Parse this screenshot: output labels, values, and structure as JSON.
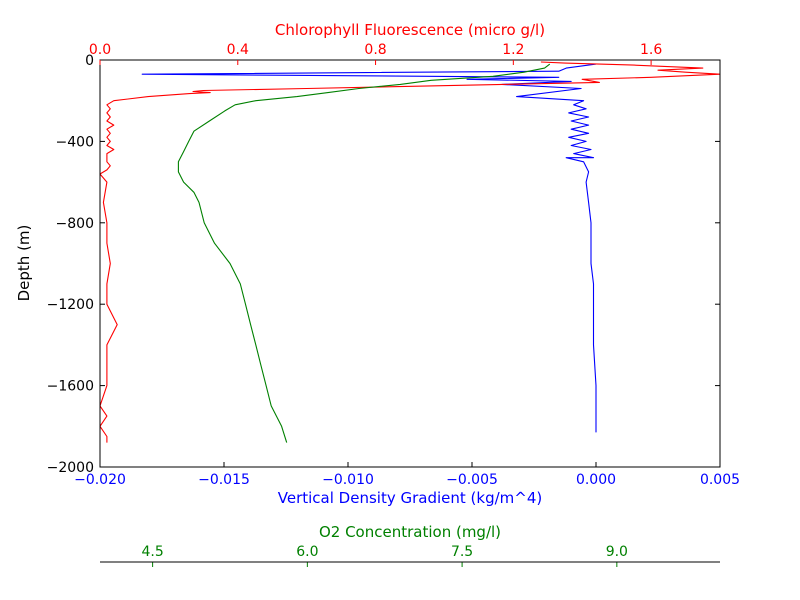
{
  "chart_data": {
    "type": "line",
    "grid": false,
    "ylabel": "Depth (m)",
    "y_axis": {
      "ylim": [
        -2000,
        0
      ],
      "ticks": [
        0,
        -400,
        -800,
        -1200,
        -1600,
        -2000
      ],
      "tick_labels": [
        "0",
        "−400",
        "−800",
        "−1200",
        "−1600",
        "−2000"
      ]
    },
    "axes": {
      "density": {
        "label": "Vertical Density Gradient (kg/m^4)",
        "position": "bottom",
        "color": "#0000ff",
        "xlim": [
          -0.02,
          0.005
        ],
        "ticks": [
          -0.02,
          -0.015,
          -0.01,
          -0.005,
          0.0,
          0.005
        ],
        "tick_labels": [
          "−0.020",
          "−0.015",
          "−0.010",
          "−0.005",
          "0.000",
          "0.005"
        ]
      },
      "chlorophyll": {
        "label": "Chlorophyll Fluorescence (micro g/l)",
        "position": "top",
        "color": "#ff0000",
        "xlim": [
          0.0,
          1.8
        ],
        "ticks": [
          0.0,
          0.4,
          0.8,
          1.2,
          1.6
        ],
        "tick_labels": [
          "0.0",
          "0.4",
          "0.8",
          "1.2",
          "1.6"
        ]
      },
      "o2": {
        "label": "O2 Concentration (mg/l)",
        "position": "detached-bottom",
        "color": "#008000",
        "xlim": [
          3.99,
          10.0
        ],
        "ticks": [
          4.5,
          6.0,
          7.5,
          9.0
        ],
        "tick_labels": [
          "4.5",
          "6.0",
          "7.5",
          "9.0"
        ]
      }
    },
    "series": [
      {
        "axis": "density",
        "color": "#0000ff",
        "x": [
          0.0,
          -0.0012,
          -0.0015,
          -0.0183,
          -0.0015,
          -0.0052,
          -0.001,
          -0.0038,
          -0.0006,
          -0.0032,
          -0.0005,
          -0.0009,
          -0.0004,
          -0.0011,
          -0.0003,
          -0.001,
          -0.0003,
          -0.001,
          -0.0003,
          -0.0011,
          -0.0004,
          -0.001,
          -0.0002,
          -0.0009,
          -0.0001,
          -0.0012,
          -0.0005,
          -0.0003,
          -0.0004,
          -0.0003,
          -0.0002,
          -0.0002,
          -0.0001,
          -0.0001,
          -0.0001,
          0.0,
          0.0,
          0.0,
          0.0
        ],
        "y": [
          -20,
          -40,
          -55,
          -70,
          -85,
          -95,
          -105,
          -120,
          -140,
          -180,
          -200,
          -220,
          -240,
          -260,
          -280,
          -300,
          -320,
          -340,
          -360,
          -380,
          -400,
          -420,
          -440,
          -460,
          -480,
          -480,
          -500,
          -550,
          -600,
          -700,
          -800,
          -1000,
          -1100,
          -1200,
          -1400,
          -1600,
          -1700,
          -1800,
          -1830
        ]
      },
      {
        "axis": "chlorophyll",
        "color": "#ff0000",
        "x": [
          1.28,
          1.35,
          1.55,
          1.75,
          1.62,
          1.7,
          1.8,
          1.6,
          1.4,
          1.45,
          0.6,
          0.3,
          0.27,
          0.32,
          0.26,
          0.14,
          0.04,
          0.02,
          0.03,
          0.02,
          0.03,
          0.02,
          0.04,
          0.02,
          0.03,
          0.02,
          0.03,
          0.02,
          0.04,
          0.02,
          0.02,
          0.02,
          0.03,
          0.02,
          0.0,
          0.02,
          0.01,
          0.02,
          0.02,
          0.03,
          0.02,
          0.02,
          0.05,
          0.02,
          0.02,
          0.02,
          0.0,
          0.02,
          0.0,
          0.02,
          0.02
        ],
        "y": [
          -10,
          -15,
          -25,
          -40,
          -50,
          -60,
          -70,
          -85,
          -95,
          -110,
          -140,
          -150,
          -155,
          -160,
          -165,
          -180,
          -200,
          -220,
          -240,
          -260,
          -280,
          -300,
          -320,
          -340,
          -360,
          -380,
          -400,
          -420,
          -440,
          -460,
          -480,
          -500,
          -520,
          -540,
          -560,
          -600,
          -700,
          -800,
          -900,
          -1000,
          -1100,
          -1200,
          -1300,
          -1400,
          -1500,
          -1600,
          -1700,
          -1750,
          -1800,
          -1850,
          -1880
        ]
      },
      {
        "axis": "o2",
        "color": "#008000",
        "x": [
          8.35,
          8.3,
          8.1,
          7.8,
          7.5,
          7.2,
          6.9,
          6.5,
          6.2,
          5.9,
          5.5,
          5.3,
          5.2,
          5.05,
          4.9,
          4.85,
          4.8,
          4.75,
          4.75,
          4.8,
          4.9,
          4.95,
          5.0,
          5.1,
          5.25,
          5.35,
          5.4,
          5.45,
          5.5,
          5.55,
          5.6,
          5.65,
          5.75,
          5.8
        ],
        "y": [
          -20,
          -40,
          -60,
          -80,
          -90,
          -100,
          -120,
          -140,
          -160,
          -180,
          -200,
          -220,
          -250,
          -300,
          -350,
          -400,
          -450,
          -500,
          -550,
          -600,
          -650,
          -700,
          -800,
          -900,
          -1000,
          -1100,
          -1200,
          -1300,
          -1400,
          -1500,
          -1600,
          -1700,
          -1800,
          -1880
        ]
      }
    ]
  }
}
